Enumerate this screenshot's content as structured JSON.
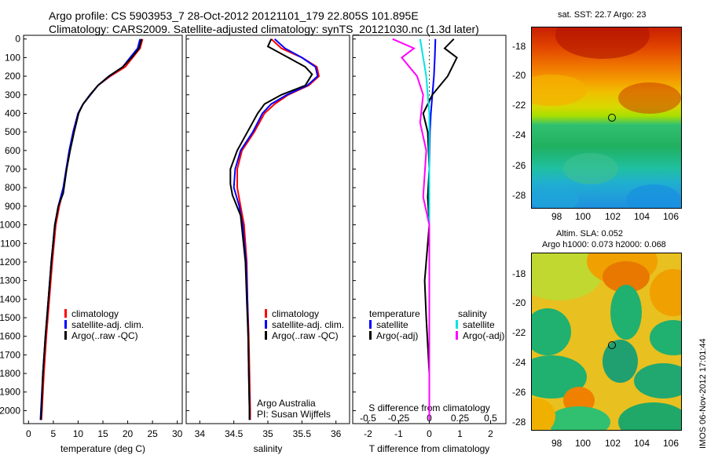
{
  "header": {
    "title_line1": "Argo profile: CS 5903953_7 28-Oct-2012 20121101_179 22.805S 101.895E",
    "title_line2": "Climatology: CARS2009. Satellite-adjusted climatology: synTS_20121030.nc (1.3d later)"
  },
  "colors": {
    "climatology": "#ff0000",
    "satellite": "#0000ff",
    "argo": "#000000",
    "sat_salinity": "#00e5e5",
    "argo_salinity": "#ff00ff"
  },
  "chart_data": [
    {
      "type": "line",
      "xlabel": "temperature (deg C)",
      "xlim": [
        -1,
        31
      ],
      "ylim": [
        2070,
        -20
      ],
      "xticks": [
        "0",
        "5",
        "10",
        "15",
        "20",
        "25",
        "30"
      ],
      "yticks": [
        "0",
        "100",
        "200",
        "300",
        "400",
        "500",
        "600",
        "700",
        "800",
        "900",
        "1000",
        "1100",
        "1200",
        "1300",
        "1400",
        "1500",
        "1600",
        "1700",
        "1800",
        "1900",
        "2000"
      ],
      "series": [
        {
          "name": "climatology",
          "color": "#ff0000",
          "x": [
            23,
            22.5,
            21,
            19.5,
            16.5,
            14,
            12.5,
            11,
            10,
            9,
            8.3,
            7.6,
            7.1,
            6.2,
            5.5,
            4.8,
            4.2,
            3.6,
            3.1,
            2.7,
            2.6
          ],
          "y": [
            0,
            50,
            100,
            150,
            200,
            250,
            300,
            350,
            400,
            500,
            600,
            700,
            800,
            900,
            1000,
            1200,
            1400,
            1600,
            1800,
            2000,
            2050
          ]
        },
        {
          "name": "satellite-adj. clim.",
          "color": "#0000ff",
          "x": [
            22.5,
            22,
            20.5,
            19,
            16.3,
            14,
            12.5,
            11,
            10,
            9,
            8.2,
            7.6,
            7.0,
            6.0,
            5.3,
            4.6,
            4.0,
            3.4,
            2.9,
            2.5,
            2.4
          ],
          "y": [
            0,
            50,
            100,
            150,
            200,
            250,
            300,
            350,
            400,
            500,
            600,
            700,
            800,
            900,
            1000,
            1200,
            1400,
            1600,
            1800,
            2000,
            2050
          ]
        },
        {
          "name": "Argo(..raw -QC)",
          "color": "#000000",
          "x": [
            22.8,
            22.3,
            20.8,
            19,
            16.2,
            14,
            12.4,
            11,
            10.1,
            9.2,
            8.4,
            7.7,
            7.0,
            6.0,
            5.3,
            4.6,
            4.0,
            3.4,
            2.9,
            2.6,
            2.5
          ],
          "y": [
            0,
            50,
            100,
            150,
            200,
            250,
            300,
            350,
            400,
            500,
            600,
            700,
            830,
            900,
            1000,
            1200,
            1400,
            1600,
            1800,
            2000,
            2050
          ]
        }
      ],
      "legend": [
        "climatology",
        "satellite-adj. clim.",
        "Argo(..raw -QC)"
      ]
    },
    {
      "type": "line",
      "xlabel": "salinity",
      "xlim": [
        33.8,
        36.2
      ],
      "ylim": [
        2070,
        -20
      ],
      "xticks": [
        "34",
        "34.5",
        "35",
        "35.5",
        "36"
      ],
      "series": [
        {
          "name": "climatology",
          "color": "#ff0000",
          "x": [
            35.05,
            35.2,
            35.5,
            35.72,
            35.75,
            35.6,
            35.3,
            35.1,
            34.95,
            34.8,
            34.62,
            34.55,
            34.55,
            34.6,
            34.65,
            34.69,
            34.7,
            34.72,
            34.73,
            34.74,
            34.74
          ],
          "y": [
            0,
            50,
            100,
            150,
            200,
            250,
            300,
            350,
            400,
            500,
            600,
            700,
            800,
            900,
            1000,
            1200,
            1400,
            1600,
            1800,
            2000,
            2050
          ]
        },
        {
          "name": "satellite-adj. clim.",
          "color": "#0000ff",
          "x": [
            35.1,
            35.25,
            35.5,
            35.7,
            35.73,
            35.58,
            35.28,
            35.05,
            34.92,
            34.78,
            34.6,
            34.52,
            34.5,
            34.58,
            34.63,
            34.68,
            34.7,
            34.71,
            34.72,
            34.73,
            34.73
          ],
          "y": [
            0,
            50,
            100,
            150,
            200,
            250,
            300,
            350,
            400,
            500,
            600,
            700,
            800,
            900,
            1000,
            1200,
            1400,
            1600,
            1800,
            2000,
            2050
          ]
        },
        {
          "name": "Argo(..raw -QC)",
          "color": "#000000",
          "x": [
            35.05,
            35.0,
            35.3,
            35.55,
            35.65,
            35.55,
            35.2,
            34.95,
            34.85,
            34.7,
            34.55,
            34.45,
            34.45,
            34.48,
            34.6,
            34.67,
            34.69,
            34.71,
            34.72,
            34.73,
            34.73
          ],
          "y": [
            0,
            40,
            100,
            150,
            190,
            250,
            300,
            350,
            400,
            500,
            600,
            700,
            780,
            840,
            950,
            1200,
            1400,
            1600,
            1800,
            2000,
            2050
          ]
        }
      ],
      "legend": [
        "climatology",
        "satellite-adj. clim.",
        "Argo(..raw -QC)"
      ],
      "annotation": [
        "Argo Australia",
        "PI: Susan Wijffels"
      ]
    },
    {
      "type": "line",
      "xlabel": "T difference from climatology",
      "xlabel2": "S difference from climatology",
      "xlim": [
        -2.5,
        2.5
      ],
      "ylim": [
        2070,
        -20
      ],
      "xticks": [
        "-2",
        "-1",
        "0",
        "1",
        "2"
      ],
      "xticks2": [
        "-0.5",
        "-0.25",
        "0",
        "0.25",
        "0.5"
      ],
      "series": [
        {
          "name": "temperature satellite",
          "color": "#0000ff",
          "x": [
            0.2,
            0.18,
            0.15,
            0.1,
            0.05,
            0.02,
            0,
            0,
            0,
            0,
            0
          ],
          "y": [
            0,
            100,
            200,
            300,
            400,
            500,
            700,
            1000,
            1400,
            1800,
            2050
          ]
        },
        {
          "name": "temperature Argo(-adj)",
          "color": "#000000",
          "x": [
            0.8,
            0.5,
            0.9,
            0.6,
            0.1,
            -0.2,
            -0.05,
            0,
            -0.05,
            0,
            -0.15,
            -0.1,
            0,
            0
          ],
          "y": [
            0,
            50,
            100,
            200,
            300,
            400,
            500,
            700,
            850,
            1000,
            1300,
            1500,
            1800,
            2050
          ]
        },
        {
          "name": "salinity satellite",
          "color": "#00e5e5",
          "x": [
            -0.3,
            -0.2,
            -0.1,
            -0.05,
            0,
            0,
            0,
            0
          ],
          "y": [
            0,
            100,
            200,
            300,
            400,
            800,
            1400,
            2050
          ]
        },
        {
          "name": "salinity Argo(-adj)",
          "color": "#ff00ff",
          "x": [
            -1.2,
            -0.5,
            -0.9,
            -0.4,
            -0.2,
            -0.3,
            -0.1,
            -0.2,
            0,
            0
          ],
          "y": [
            0,
            50,
            100,
            200,
            300,
            450,
            600,
            850,
            1000,
            2050
          ]
        }
      ],
      "legend_headers": [
        "temperature",
        "salinity"
      ],
      "legend": [
        "satellite",
        "Argo(-adj)"
      ]
    }
  ],
  "maps": {
    "sst": {
      "title": "sat. SST: 22.7  Argo: 23",
      "yticks": [
        "-18",
        "-20",
        "-22",
        "-24",
        "-26",
        "-28"
      ],
      "xticks": [
        "98",
        "100",
        "102",
        "104",
        "106"
      ]
    },
    "sla": {
      "title_line1": "Altim. SLA: 0.052",
      "title_line2": "Argo h1000: 0.073 h2000: 0.068",
      "yticks": [
        "-18",
        "-20",
        "-22",
        "-24",
        "-26",
        "-28"
      ],
      "xticks": [
        "98",
        "100",
        "102",
        "104",
        "106"
      ]
    }
  },
  "stamp": "IMOS 06-Nov-2012 17:01:44"
}
